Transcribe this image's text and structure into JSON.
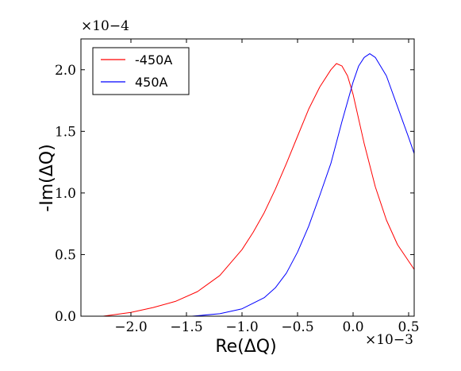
{
  "chart_data": {
    "type": "line",
    "xlabel": "Re(ΔQ)",
    "ylabel": "-Im(ΔQ)",
    "x_multiplier": "×10−3",
    "y_multiplier": "×10−4",
    "xlim": [
      -2.45,
      0.55
    ],
    "ylim": [
      0.0,
      2.25
    ],
    "x_units_scale": 0.001,
    "y_units_scale": 0.0001,
    "x_ticks": [
      -2.0,
      -1.5,
      -1.0,
      -0.5,
      0.0,
      0.5
    ],
    "x_tick_labels": [
      "−2.0",
      "−1.5",
      "−1.0",
      "−0.5",
      "0.0",
      "0.5"
    ],
    "y_ticks": [
      0.0,
      0.5,
      1.0,
      1.5,
      2.0
    ],
    "y_tick_labels": [
      "0.0",
      "0.5",
      "1.0",
      "1.5",
      "2.0"
    ],
    "grid": false,
    "legend_position": "top-left",
    "series": [
      {
        "name": "-450A",
        "color": "#ff0000",
        "x": [
          -2.25,
          -2.0,
          -1.8,
          -1.6,
          -1.4,
          -1.2,
          -1.0,
          -0.9,
          -0.8,
          -0.7,
          -0.6,
          -0.5,
          -0.4,
          -0.3,
          -0.2,
          -0.15,
          -0.1,
          -0.05,
          0.0,
          0.1,
          0.2,
          0.3,
          0.4,
          0.55
        ],
        "y": [
          0.0,
          0.03,
          0.07,
          0.12,
          0.2,
          0.33,
          0.54,
          0.68,
          0.84,
          1.03,
          1.24,
          1.46,
          1.68,
          1.86,
          2.0,
          2.05,
          2.03,
          1.95,
          1.8,
          1.4,
          1.05,
          0.78,
          0.58,
          0.38
        ]
      },
      {
        "name": "450A",
        "color": "#0000ff",
        "x": [
          -1.45,
          -1.2,
          -1.0,
          -0.8,
          -0.7,
          -0.6,
          -0.5,
          -0.4,
          -0.3,
          -0.2,
          -0.1,
          0.0,
          0.05,
          0.1,
          0.15,
          0.2,
          0.3,
          0.4,
          0.5,
          0.55
        ],
        "y": [
          0.0,
          0.02,
          0.06,
          0.15,
          0.23,
          0.35,
          0.52,
          0.73,
          0.98,
          1.24,
          1.58,
          1.9,
          2.03,
          2.1,
          2.13,
          2.1,
          1.95,
          1.7,
          1.45,
          1.32
        ]
      }
    ]
  }
}
